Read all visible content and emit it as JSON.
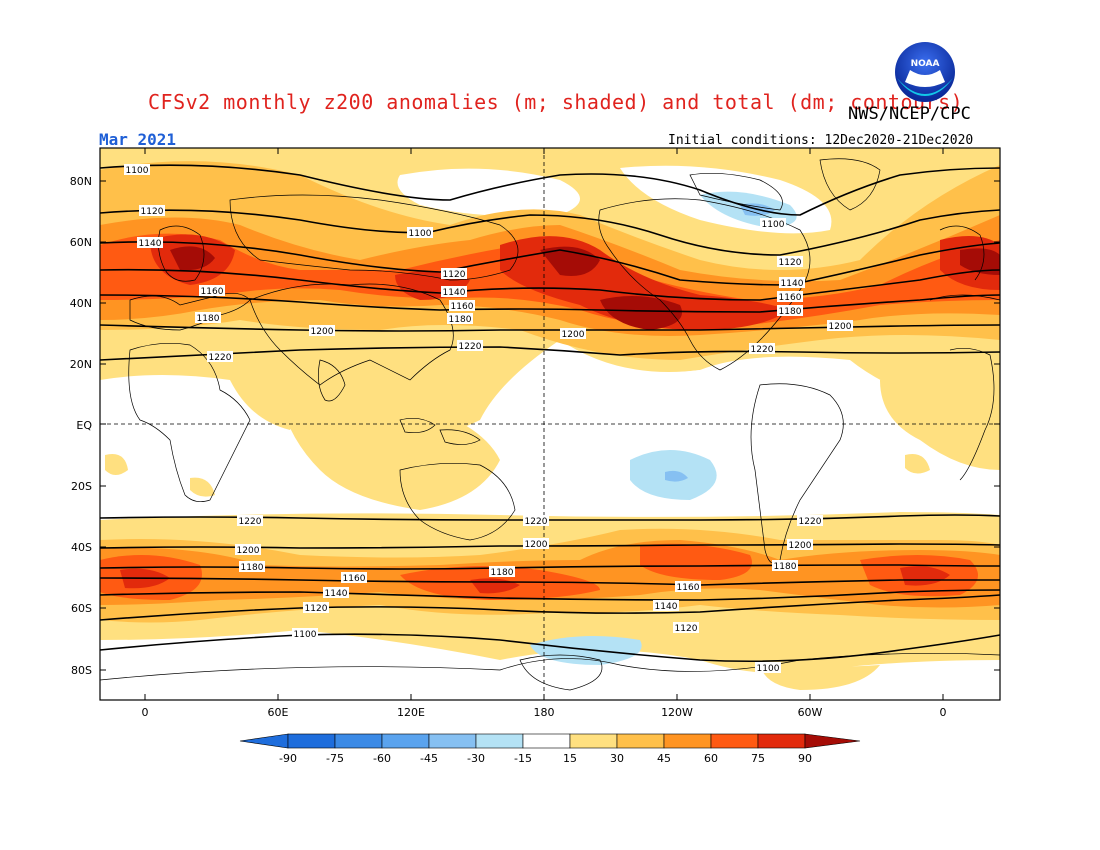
{
  "header": {
    "title": "CFSv2 monthly z200 anomalies (m; shaded) and total (dm; contours)",
    "agency": "NWS/NCEP/CPC",
    "month": "Mar 2021",
    "initial_conditions": "Initial conditions: 12Dec2020-21Dec2020"
  },
  "logo": {
    "text": "NOAA",
    "icon": "noaa-logo"
  },
  "map": {
    "lat_labels": [
      "80N",
      "60N",
      "40N",
      "20N",
      "EQ",
      "20S",
      "40S",
      "60S",
      "80S"
    ],
    "lon_labels": [
      "0",
      "60E",
      "120E",
      "180",
      "120W",
      "60W",
      "0"
    ],
    "contour_labels": [
      "1100",
      "1120",
      "1140",
      "1160",
      "1180",
      "1200",
      "1220"
    ]
  },
  "colorbar": {
    "ticks": [
      "-90",
      "-75",
      "-60",
      "-45",
      "-30",
      "-15",
      "15",
      "30",
      "45",
      "60",
      "75",
      "90"
    ],
    "colors": [
      "#1e6ddc",
      "#3b8ae6",
      "#5aa3ee",
      "#86c0f2",
      "#b4e2f5",
      "#ffffff",
      "#ffe080",
      "#ffc04a",
      "#ff9422",
      "#ff5a12",
      "#e22a0c",
      "#a50c06"
    ]
  },
  "colors": {
    "title": "#e0231e",
    "month": "#1f5fd6"
  }
}
